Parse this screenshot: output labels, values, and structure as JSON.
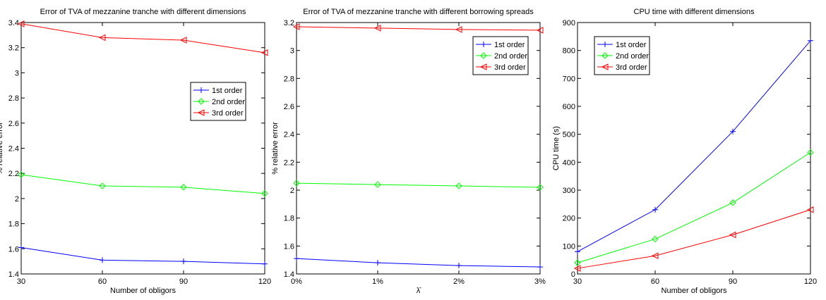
{
  "chart_data": [
    {
      "type": "line",
      "title": "Error of TVA of mezzanine tranche with different dimensions",
      "xlabel": "Number of obligors",
      "ylabel": "% relative error",
      "x": [
        30,
        60,
        90,
        120
      ],
      "x_tick_labels": [
        "30",
        "60",
        "90",
        "120"
      ],
      "xlim": [
        30,
        120
      ],
      "ylim": [
        1.4,
        3.4
      ],
      "y_ticks": [
        1.4,
        1.6,
        1.8,
        2,
        2.2,
        2.4,
        2.6,
        2.8,
        3,
        3.2,
        3.4
      ],
      "legend_position": "right",
      "series": [
        {
          "name": "1st order",
          "color": "#0000ff",
          "marker": "plus",
          "values": [
            1.61,
            1.51,
            1.5,
            1.48
          ]
        },
        {
          "name": "2nd order",
          "color": "#00ff00",
          "marker": "diamond",
          "values": [
            2.19,
            2.1,
            2.09,
            2.04
          ]
        },
        {
          "name": "3rd order",
          "color": "#ff0000",
          "marker": "triangle-left",
          "values": [
            3.39,
            3.28,
            3.26,
            3.16
          ]
        }
      ]
    },
    {
      "type": "line",
      "title": "Error of TVA of mezzanine tranche with different borrowing spreads",
      "xlabel": "λ̄",
      "ylabel": "% relative error",
      "x": [
        0,
        1,
        2,
        3
      ],
      "x_tick_labels": [
        "0%",
        "1%",
        "2%",
        "3%"
      ],
      "xlim": [
        0,
        3
      ],
      "ylim": [
        1.4,
        3.2
      ],
      "y_ticks": [
        1.4,
        1.6,
        1.8,
        2,
        2.2,
        2.4,
        2.6,
        2.8,
        3,
        3.2
      ],
      "legend_position": "top-right",
      "series": [
        {
          "name": "1st order",
          "color": "#0000ff",
          "marker": "plus",
          "values": [
            1.51,
            1.48,
            1.46,
            1.45
          ]
        },
        {
          "name": "2nd order",
          "color": "#00ff00",
          "marker": "diamond",
          "values": [
            2.05,
            2.04,
            2.03,
            2.02
          ]
        },
        {
          "name": "3rd order",
          "color": "#ff0000",
          "marker": "triangle-left",
          "values": [
            3.17,
            3.16,
            3.15,
            3.145
          ]
        }
      ]
    },
    {
      "type": "line",
      "title": "CPU time with different dimensions",
      "xlabel": "Number of obligors",
      "ylabel": "CPU time (s)",
      "x": [
        30,
        60,
        90,
        120
      ],
      "x_tick_labels": [
        "30",
        "60",
        "90",
        "120"
      ],
      "xlim": [
        30,
        120
      ],
      "ylim": [
        0,
        900
      ],
      "y_ticks": [
        0,
        100,
        200,
        300,
        400,
        500,
        600,
        700,
        800,
        900
      ],
      "legend_position": "top-left",
      "series": [
        {
          "name": "1st order",
          "color": "#0000ff",
          "marker": "plus",
          "values": [
            80,
            230,
            510,
            835
          ]
        },
        {
          "name": "2nd order",
          "color": "#00ff00",
          "marker": "diamond",
          "values": [
            40,
            125,
            255,
            435
          ]
        },
        {
          "name": "3rd order",
          "color": "#ff0000",
          "marker": "triangle-left",
          "values": [
            20,
            65,
            140,
            230
          ]
        }
      ]
    }
  ]
}
